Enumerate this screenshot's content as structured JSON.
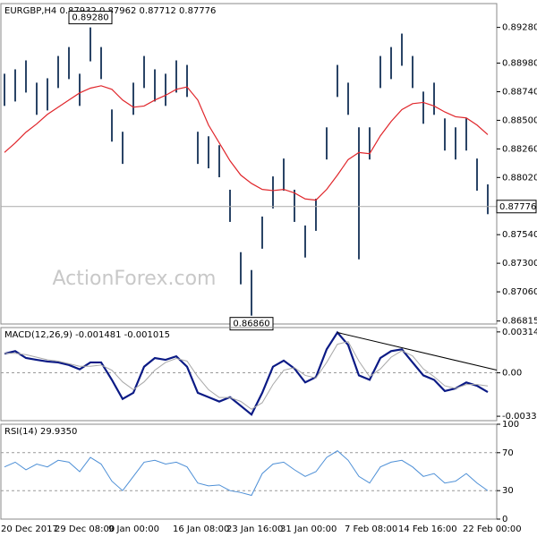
{
  "chart_data": [
    {
      "type": "ohlc",
      "title": "EURGBP,H4  0.87932 0.87962 0.87712 0.87776",
      "watermark": "ActionForex.com",
      "high": [
        0.88891,
        0.88928,
        0.89003,
        0.88816,
        0.88853,
        0.8904,
        0.89115,
        0.88891,
        0.8928,
        0.89115,
        0.88591,
        0.88404,
        0.88816,
        0.8904,
        0.88928,
        0.88891,
        0.89003,
        0.88965,
        0.88404,
        0.88366,
        0.88291,
        0.87917,
        0.87393,
        0.87243,
        0.87692,
        0.88029,
        0.88179,
        0.87917,
        0.87617,
        0.87842,
        0.88441,
        0.88965,
        0.88816,
        0.88441,
        0.88441,
        0.8904,
        0.89115,
        0.89228,
        0.8904,
        0.88741,
        0.88816,
        0.88516,
        0.88441,
        0.88516,
        0.88179,
        0.87962
      ],
      "low": [
        0.88621,
        0.88658,
        0.88733,
        0.88546,
        0.88583,
        0.88771,
        0.88846,
        0.88621,
        0.88995,
        0.88846,
        0.88321,
        0.88134,
        0.88546,
        0.88771,
        0.88658,
        0.88621,
        0.88733,
        0.88696,
        0.88134,
        0.88097,
        0.88022,
        0.87647,
        0.87123,
        0.8686,
        0.87422,
        0.8776,
        0.87909,
        0.87647,
        0.87348,
        0.87572,
        0.88171,
        0.88696,
        0.88546,
        0.87333,
        0.88171,
        0.88771,
        0.88846,
        0.88958,
        0.88771,
        0.88471,
        0.88546,
        0.88246,
        0.88171,
        0.88246,
        0.87909,
        0.87712
      ],
      "color": "#2a4466",
      "overlay": {
        "color": "#e0262b",
        "values": [
          0.8823,
          0.8831,
          0.884,
          0.8847,
          0.8855,
          0.8861,
          0.8867,
          0.8873,
          0.8877,
          0.8879,
          0.8876,
          0.8867,
          0.8861,
          0.8862,
          0.8867,
          0.8871,
          0.8876,
          0.8878,
          0.8867,
          0.8846,
          0.8831,
          0.8816,
          0.8804,
          0.8797,
          0.8792,
          0.8791,
          0.8792,
          0.8789,
          0.8784,
          0.8783,
          0.8792,
          0.8804,
          0.8817,
          0.8823,
          0.8822,
          0.8837,
          0.8849,
          0.8859,
          0.8864,
          0.8865,
          0.8862,
          0.8857,
          0.8853,
          0.8852,
          0.8846,
          0.8838
        ]
      },
      "annotations": [
        {
          "value": 0.8928,
          "label": "0.89280"
        },
        {
          "value": 0.8686,
          "label": "0.86860"
        }
      ],
      "last_price": {
        "value": 0.87776,
        "label": "0.87776"
      },
      "ylim": [
        0.8679,
        0.8948
      ],
      "yticks": [
        {
          "value": 0.8928,
          "label": "0.89280"
        },
        {
          "value": 0.8898,
          "label": "0.88980"
        },
        {
          "value": 0.8874,
          "label": "0.88740"
        },
        {
          "value": 0.885,
          "label": "0.88500"
        },
        {
          "value": 0.8826,
          "label": "0.88260"
        },
        {
          "value": 0.8802,
          "label": "0.88020"
        },
        {
          "value": 0.8754,
          "label": "0.87540"
        },
        {
          "value": 0.873,
          "label": "0.87300"
        },
        {
          "value": 0.8706,
          "label": "0.87060"
        },
        {
          "value": 0.86815,
          "label": "0.86815"
        }
      ]
    },
    {
      "type": "line",
      "title": "MACD(12,26,9) -0.001481 -0.001015",
      "series": [
        {
          "color": "#0b1a85",
          "values": [
            0.00147,
            0.00167,
            0.00114,
            0.001,
            0.00087,
            0.0008,
            0.0006,
            0.00027,
            0.0008,
            0.0008,
            -0.00054,
            -0.00201,
            -0.00154,
            0.00047,
            0.00114,
            0.001,
            0.00127,
            0.00047,
            -0.00154,
            -0.00187,
            -0.00221,
            -0.00187,
            -0.00254,
            -0.00321,
            -0.00154,
            0.00047,
            0.00094,
            0.00033,
            -0.00074,
            -0.00033,
            0.00181,
            0.0031,
            0.00214,
            -0.0002,
            -0.00054,
            0.00114,
            0.00167,
            0.00181,
            0.0008,
            -0.0002,
            -0.00054,
            -0.0014,
            -0.0012,
            -0.00074,
            -0.001,
            -0.001481
          ]
        },
        {
          "color": "#a8a8a8",
          "values": [
            0.0015,
            0.0015,
            0.0014,
            0.0012,
            0.001,
            0.0009,
            0.0007,
            0.0005,
            0.0005,
            0.0006,
            0.0002,
            -0.0007,
            -0.0013,
            -0.0007,
            0.0002,
            0.0008,
            0.0011,
            0.0009,
            -0.0003,
            -0.0013,
            -0.0019,
            -0.0019,
            -0.0022,
            -0.0028,
            -0.0023,
            -0.0009,
            0.0002,
            0.0004,
            -0.0002,
            -0.0004,
            0.0008,
            0.0022,
            0.0024,
            0.0009,
            -0.0003,
            0.0003,
            0.0012,
            0.0017,
            0.0013,
            0.0003,
            -0.0003,
            -0.001,
            -0.0012,
            -0.0009,
            -0.0009,
            -0.001015
          ]
        }
      ],
      "levels": [
        0
      ],
      "ylim": [
        -0.00368,
        0.00348
      ],
      "yticks": [
        0.003146,
        {
          "value": 0,
          "label": "0.00"
        },
        -0.003342
      ]
    },
    {
      "type": "line",
      "title": "RSI(14) 29.9350",
      "series": [
        {
          "color": "#4d8fd6",
          "values": [
            55,
            60,
            52,
            58,
            55,
            62,
            60,
            50,
            65,
            58,
            40,
            30,
            45,
            60,
            62,
            58,
            60,
            55,
            38,
            35,
            36,
            30,
            28,
            25,
            48,
            58,
            60,
            52,
            45,
            50,
            65,
            72,
            62,
            45,
            38,
            55,
            60,
            62,
            55,
            45,
            48,
            38,
            40,
            48,
            38,
            29.935
          ]
        }
      ],
      "levels": [
        70,
        30
      ],
      "ylim": [
        0,
        100
      ],
      "yticks": [
        100,
        70,
        30,
        0
      ],
      "categories": [
        "20 Dec 2017",
        null,
        null,
        null,
        null,
        "29 Dec 08:00",
        null,
        null,
        null,
        null,
        "9 Jan 00:00",
        null,
        null,
        null,
        null,
        null,
        "16 Jan 08:00",
        null,
        null,
        null,
        null,
        "23 Jan 16:00",
        null,
        null,
        null,
        null,
        "31 Jan 00:00",
        null,
        null,
        null,
        null,
        null,
        "7 Feb 08:00",
        null,
        null,
        null,
        null,
        "14 Feb 16:00",
        null,
        null,
        null,
        null,
        null,
        "22 Feb 00:00",
        null,
        null
      ]
    }
  ]
}
